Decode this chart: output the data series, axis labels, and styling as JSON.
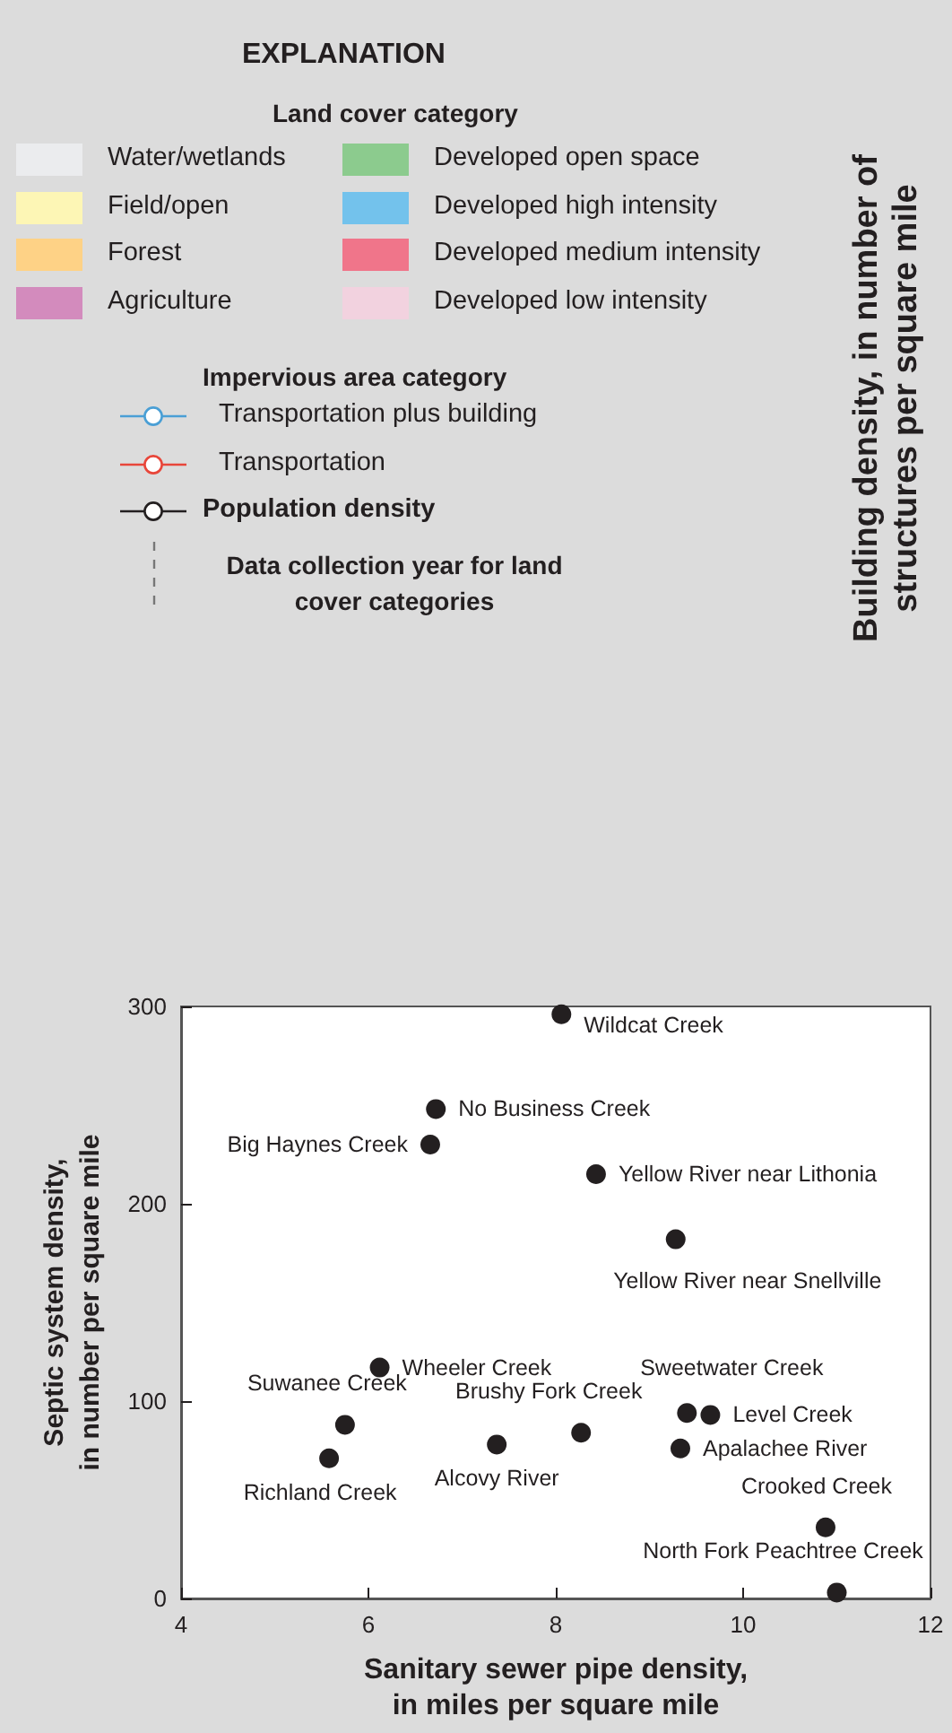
{
  "chart_data": {
    "type": "scatter",
    "xlabel": "Sanitary sewer pipe density,\nin miles per square mile",
    "ylabel": "Septic system density,\nin number per square mile",
    "x": [
      8.06,
      6.72,
      6.66,
      8.43,
      9.28,
      6.12,
      5.75,
      5.58,
      7.37,
      8.27,
      9.4,
      9.65,
      9.33,
      10.88,
      11.0
    ],
    "series": [
      {
        "color": "#231f20",
        "values": [
          296,
          248,
          230,
          215,
          182,
          117,
          88,
          71,
          78,
          84,
          94,
          93,
          76,
          36,
          3
        ]
      }
    ],
    "xlim": [
      4,
      12
    ],
    "xticks": [
      4,
      6,
      8,
      10,
      12
    ],
    "ylim": [
      0,
      300
    ],
    "yticks": [
      0,
      100,
      200,
      300
    ],
    "grid": false,
    "marker": "circle",
    "annotations": [
      "EXPLANATION",
      "Land cover category",
      "Water/wetlands",
      "Field/open",
      "Forest",
      "Agriculture",
      "Developed open space",
      "Developed high intensity",
      "Developed medium intensity",
      "Developed low intensity",
      "Impervious area category",
      "Transportation plus building",
      "Transportation",
      "Population density",
      "Data collection year for land cover categories",
      "Building density, in number of structures per square mile",
      {
        "text": "Wildcat Creek",
        "x": 8.06,
        "y": 296
      },
      {
        "text": "No Business Creek",
        "x": 6.72,
        "y": 248
      },
      {
        "text": "Big Haynes Creek",
        "x": 6.66,
        "y": 230
      },
      {
        "text": "Yellow River near Lithonia",
        "x": 8.43,
        "y": 215
      },
      {
        "text": "Yellow River near Snellville",
        "x": 9.28,
        "y": 182
      },
      {
        "text": "Wheeler Creek",
        "x": 6.12,
        "y": 117
      },
      {
        "text": "Suwanee Creek",
        "x": 5.75,
        "y": 88
      },
      {
        "text": "Richland Creek",
        "x": 5.58,
        "y": 71
      },
      {
        "text": "Alcovy River",
        "x": 7.37,
        "y": 78
      },
      {
        "text": "Brushy Fork Creek",
        "x": 8.27,
        "y": 84
      },
      {
        "text": "Sweetwater Creek",
        "x": 9.4,
        "y": 94
      },
      {
        "text": "Level Creek",
        "x": 9.65,
        "y": 93
      },
      {
        "text": "Apalachee River",
        "x": 9.33,
        "y": 76
      },
      {
        "text": "Crooked Creek",
        "x": 10.88,
        "y": 36
      },
      {
        "text": "North Fork Peachtree Creek",
        "x": 11.0,
        "y": 3
      }
    ]
  }
}
